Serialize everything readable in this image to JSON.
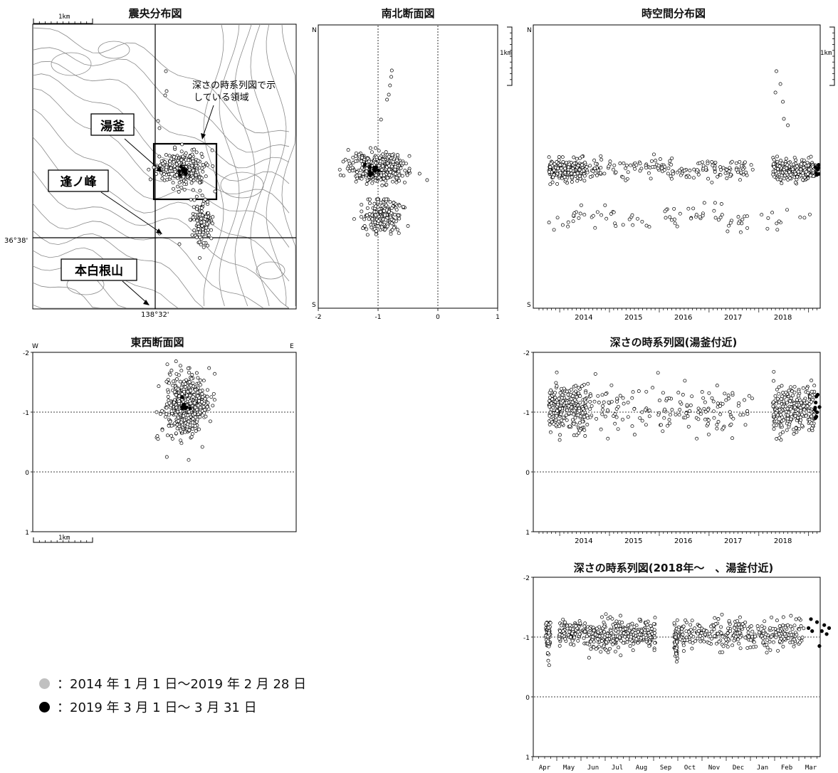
{
  "titles": {
    "epicenter": "震央分布図",
    "ns": "南北断面図",
    "spacetime": "時空間分布図",
    "ew": "東西断面図",
    "depth_all": "深さの時系列図(湯釜付近)",
    "depth_2018": "深さの時系列図(2018年～　、湯釜付近)"
  },
  "map": {
    "scale_label": "1km",
    "lat_label": "36°38'",
    "lon_label": "138°32'",
    "callouts": [
      {
        "id": "yugama",
        "label": "湯釜"
      },
      {
        "id": "ounomine",
        "label": "逢ノ峰"
      },
      {
        "id": "motoshirane",
        "label": "本白根山"
      }
    ],
    "region_note_line1": "深さの時系列図で示",
    "region_note_line2": "している領域"
  },
  "ns_section": {
    "top_label": "N",
    "bottom_label": "S",
    "x_ticks": [
      "-2",
      "-1",
      "0",
      "1"
    ],
    "scale_label": "1km"
  },
  "spacetime": {
    "top_label": "N",
    "bottom_label": "S",
    "years": [
      "2014",
      "2015",
      "2016",
      "2017",
      "2018"
    ],
    "scale_label": "1km"
  },
  "ew_section": {
    "left_label": "W",
    "right_label": "E",
    "y_ticks": [
      "-2",
      "-1",
      "0",
      "1"
    ],
    "scale_label": "1km"
  },
  "depth_all": {
    "y_ticks": [
      "-2",
      "-1",
      "0",
      "1"
    ],
    "years": [
      "2014",
      "2015",
      "2016",
      "2017",
      "2018"
    ]
  },
  "depth_2018": {
    "y_ticks": [
      "-2",
      "-1",
      "0",
      "1"
    ],
    "months": [
      "Apr",
      "May",
      "Jun",
      "Jul",
      "Aug",
      "Sep",
      "Oct",
      "Nov",
      "Dec",
      "Jan",
      "Feb",
      "Mar"
    ]
  },
  "legend": {
    "gray_text": "：2014 年 1 月 1 日～2019 年 2 月 28 日",
    "black_text": "：2019 年 3 月 1 日～ 3 月 31 日",
    "gray_color": "#c0c0c0",
    "black_color": "#000000"
  },
  "chart_data": [
    {
      "type": "scatter",
      "title": "南北断面図",
      "xlabel": "",
      "ylabel": "",
      "xlim": [
        -2,
        1
      ],
      "clusters": [
        {
          "x_center": -1.0,
          "x_spread": 0.45,
          "count": 450
        },
        {
          "x_center": -0.95,
          "x_spread": 0.3,
          "count": 220
        }
      ]
    },
    {
      "type": "scatter",
      "title": "東西断面図",
      "xlabel": "",
      "ylabel": "",
      "ylim": [
        -2,
        1
      ],
      "depth_center": -1.1,
      "depth_range": [
        -1.85,
        -0.2
      ]
    },
    {
      "type": "scatter",
      "title": "深さの時系列図(湯釜付近)",
      "xlabel": "",
      "ylabel": "",
      "x_range": [
        2013.6,
        2019.25
      ],
      "ylim": [
        -2,
        1
      ],
      "typical_depth": -1.0,
      "depth_range": [
        -1.85,
        -0.2
      ]
    },
    {
      "type": "scatter",
      "title": "深さの時系列図(2018年～　、湯釜付近)",
      "xlabel": "",
      "ylabel": "",
      "x_categories": [
        "Apr",
        "May",
        "Jun",
        "Jul",
        "Aug",
        "Sep",
        "Oct",
        "Nov",
        "Dec",
        "Jan",
        "Feb",
        "Mar"
      ],
      "ylim": [
        -2,
        1
      ],
      "typical_depth": -1.05,
      "series": [
        {
          "name": "2014 年 1 月 1 日～2019 年 2 月 28 日",
          "marker": "open"
        },
        {
          "name": "2019 年 3 月 1 日～ 3 月 31 日",
          "marker": "filled",
          "points": [
            [
              11.0,
              -1.15
            ],
            [
              11.1,
              -1.3
            ],
            [
              11.15,
              -1.1
            ],
            [
              11.35,
              -1.25
            ],
            [
              11.45,
              -0.85
            ],
            [
              11.55,
              -1.1
            ],
            [
              11.65,
              -1.2
            ],
            [
              11.75,
              -1.05
            ],
            [
              11.85,
              -1.15
            ]
          ]
        }
      ]
    }
  ]
}
